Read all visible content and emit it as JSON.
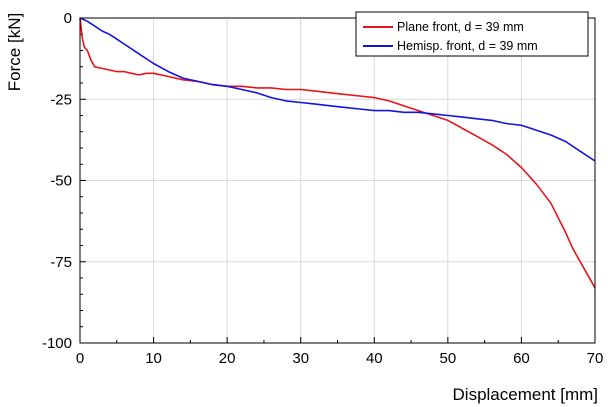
{
  "chart_data": {
    "type": "line",
    "title": "",
    "xlabel": "Displacement [mm]",
    "ylabel": "Force [kN]",
    "xlim": [
      0,
      70
    ],
    "ylim": [
      -100,
      0
    ],
    "xticks": [
      0,
      10,
      20,
      30,
      40,
      50,
      60,
      70
    ],
    "yticks": [
      0,
      -25,
      -50,
      -75,
      -100
    ],
    "grid": true,
    "legend_position": "top-right",
    "series": [
      {
        "name": "Plane front, d = 39 mm",
        "color": "#e8141c",
        "x": [
          0,
          0.3,
          0.6,
          1,
          1.5,
          2,
          3,
          4,
          5,
          6,
          7,
          8,
          9,
          10,
          12,
          14,
          16,
          18,
          20,
          22,
          24,
          26,
          28,
          30,
          32,
          34,
          36,
          38,
          40,
          42,
          44,
          46,
          48,
          50,
          52,
          54,
          56,
          58,
          60,
          62,
          64,
          66,
          67,
          68,
          69,
          70
        ],
        "y": [
          0,
          -6,
          -9,
          -10,
          -13,
          -15,
          -15.5,
          -16,
          -16.5,
          -16.5,
          -17,
          -17.5,
          -17,
          -17,
          -18,
          -19,
          -19.5,
          -20.5,
          -21,
          -21,
          -21.5,
          -21.5,
          -22,
          -22,
          -22.5,
          -23,
          -23.5,
          -24,
          -24.5,
          -25.5,
          -27,
          -28.5,
          -30,
          -31.5,
          -34,
          -36.5,
          -39,
          -42,
          -46,
          -51,
          -57,
          -66,
          -71,
          -75,
          -79,
          -83
        ]
      },
      {
        "name": "Hemisp. front, d = 39 mm",
        "color": "#1414e0",
        "x": [
          0,
          1,
          2,
          3,
          4,
          5,
          6,
          8,
          10,
          12,
          14,
          16,
          18,
          20,
          22,
          24,
          26,
          28,
          30,
          32,
          34,
          36,
          38,
          40,
          42,
          44,
          46,
          48,
          50,
          52,
          54,
          56,
          58,
          60,
          62,
          64,
          66,
          68,
          70
        ],
        "y": [
          0,
          -1,
          -2.5,
          -4,
          -5,
          -6.5,
          -8,
          -11,
          -14,
          -16.5,
          -18.5,
          -19.5,
          -20.5,
          -21,
          -22,
          -23,
          -24.5,
          -25.5,
          -26,
          -26.5,
          -27,
          -27.5,
          -28,
          -28.5,
          -28.5,
          -29,
          -29,
          -29.5,
          -30,
          -30.5,
          -31,
          -31.5,
          -32.5,
          -33,
          -34.5,
          -36,
          -38,
          -41,
          -44
        ]
      }
    ]
  }
}
